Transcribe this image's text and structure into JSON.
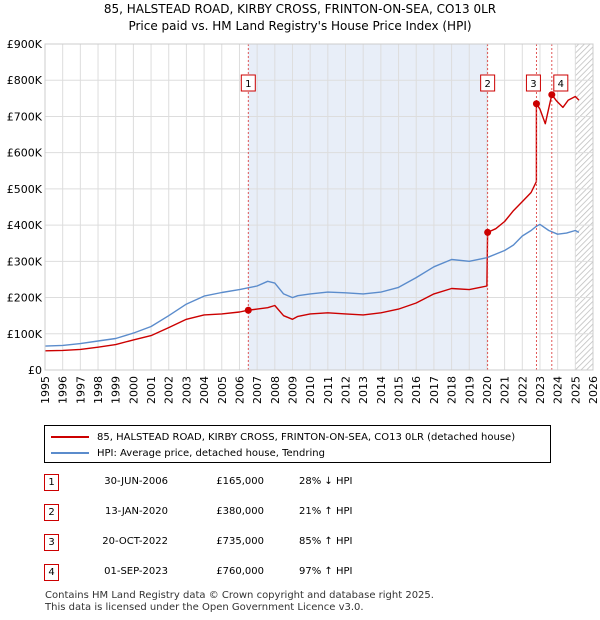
{
  "title_line1": "85, HALSTEAD ROAD, KIRBY CROSS, FRINTON-ON-SEA, CO13 0LR",
  "title_line2": "Price paid vs. HM Land Registry's House Price Index (HPI)",
  "chart_data": {
    "type": "line",
    "title": "Price paid vs. HM Land Registry's House Price Index (HPI)",
    "xlim": [
      1995,
      2026
    ],
    "ylim": [
      0,
      900000
    ],
    "x_ticks": [
      "1995",
      "1996",
      "1997",
      "1998",
      "1999",
      "2000",
      "2001",
      "2002",
      "2003",
      "2004",
      "2005",
      "2006",
      "2007",
      "2008",
      "2009",
      "2010",
      "2011",
      "2012",
      "2013",
      "2014",
      "2015",
      "2016",
      "2017",
      "2018",
      "2019",
      "2020",
      "2021",
      "2022",
      "2023",
      "2024",
      "2025",
      "2026"
    ],
    "y_ticks": [
      {
        "value": 0,
        "label": "£0"
      },
      {
        "value": 100000,
        "label": "£100K"
      },
      {
        "value": 200000,
        "label": "£200K"
      },
      {
        "value": 300000,
        "label": "£300K"
      },
      {
        "value": 400000,
        "label": "£400K"
      },
      {
        "value": 500000,
        "label": "£500K"
      },
      {
        "value": 600000,
        "label": "£600K"
      },
      {
        "value": 700000,
        "label": "£700K"
      },
      {
        "value": 800000,
        "label": "£800K"
      },
      {
        "value": 900000,
        "label": "£900K"
      }
    ],
    "shaded_range": [
      2006.5,
      2020.04
    ],
    "forecast_from": 2025.0,
    "series": [
      {
        "name": "85, HALSTEAD ROAD, KIRBY CROSS, FRINTON-ON-SEA, CO13 0LR (detached house)",
        "color": "#cc0000",
        "x": [
          1995,
          1996,
          1997,
          1998,
          1999,
          2000,
          2001,
          2002,
          2003,
          2004,
          2005,
          2006,
          2006.5,
          2007,
          2007.6,
          2008,
          2008.5,
          2009,
          2009.3,
          2010,
          2011,
          2012,
          2013,
          2014,
          2015,
          2016,
          2017,
          2018,
          2019,
          2019.6,
          2020.0,
          2020.04,
          2020.5,
          2021,
          2021.5,
          2022,
          2022.5,
          2022.8,
          2022.8,
          2023.0,
          2023.3,
          2023.67,
          2023.9,
          2024.0,
          2024.3,
          2024.6,
          2025.0,
          2025.2
        ],
        "values": [
          53000,
          54000,
          57000,
          63000,
          70000,
          83000,
          95000,
          117000,
          140000,
          152000,
          155000,
          160000,
          165000,
          168000,
          172000,
          178000,
          150000,
          140000,
          148000,
          155000,
          158000,
          155000,
          152000,
          158000,
          168000,
          185000,
          210000,
          225000,
          222000,
          228000,
          232000,
          380000,
          390000,
          410000,
          440000,
          465000,
          490000,
          520000,
          735000,
          720000,
          680000,
          760000,
          745000,
          740000,
          725000,
          745000,
          755000,
          745000
        ]
      },
      {
        "name": "HPI: Average price, detached house, Tendring",
        "color": "#5b8ccc",
        "x": [
          1995,
          1996,
          1997,
          1998,
          1999,
          2000,
          2001,
          2002,
          2003,
          2004,
          2005,
          2006,
          2007,
          2007.6,
          2008,
          2008.5,
          2009,
          2009.3,
          2010,
          2011,
          2012,
          2013,
          2014,
          2015,
          2016,
          2017,
          2018,
          2019,
          2020,
          2021,
          2021.5,
          2022,
          2022.5,
          2022.8,
          2023.0,
          2023.5,
          2024.0,
          2024.5,
          2025.0,
          2025.2
        ],
        "values": [
          66000,
          68000,
          73000,
          80000,
          87000,
          102000,
          120000,
          150000,
          182000,
          204000,
          214000,
          222000,
          232000,
          245000,
          240000,
          210000,
          200000,
          205000,
          210000,
          215000,
          213000,
          210000,
          215000,
          228000,
          255000,
          285000,
          305000,
          300000,
          310000,
          330000,
          345000,
          370000,
          385000,
          397000,
          402000,
          385000,
          375000,
          378000,
          385000,
          380000
        ]
      }
    ],
    "sales": [
      {
        "id": "1",
        "x": 2006.5,
        "value": 165000
      },
      {
        "id": "2",
        "x": 2020.04,
        "value": 380000
      },
      {
        "id": "3",
        "x": 2022.8,
        "value": 735000
      },
      {
        "id": "4",
        "x": 2023.67,
        "value": 760000
      }
    ]
  },
  "legend": {
    "property_label": "85, HALSTEAD ROAD, KIRBY CROSS, FRINTON-ON-SEA, CO13 0LR (detached house)",
    "hpi_label": "HPI: Average price, detached house, Tendring",
    "property_color": "#cc0000",
    "hpi_color": "#5b8ccc"
  },
  "sales_table": [
    {
      "num": "1",
      "date": "30-JUN-2006",
      "price": "£165,000",
      "hpi": "28% ↓ HPI"
    },
    {
      "num": "2",
      "date": "13-JAN-2020",
      "price": "£380,000",
      "hpi": "21% ↑ HPI"
    },
    {
      "num": "3",
      "date": "20-OCT-2022",
      "price": "£735,000",
      "hpi": "85% ↑ HPI"
    },
    {
      "num": "4",
      "date": "01-SEP-2023",
      "price": "£760,000",
      "hpi": "97% ↑ HPI"
    }
  ],
  "footer_line1": "Contains HM Land Registry data © Crown copyright and database right 2025.",
  "footer_line2": "This data is licensed under the Open Government Licence v3.0."
}
